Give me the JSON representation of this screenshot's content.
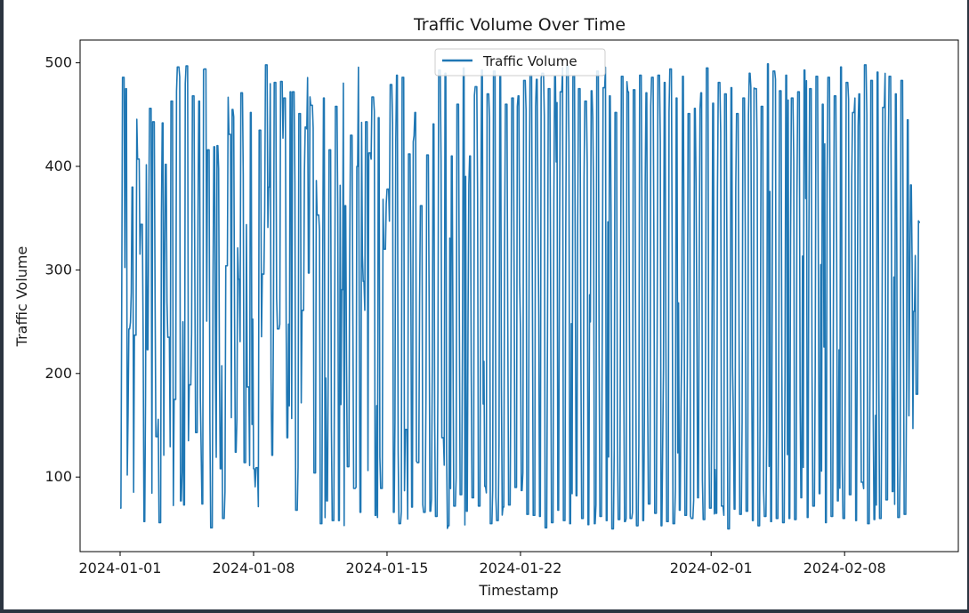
{
  "chart_data": {
    "type": "line",
    "title": "Traffic Volume Over Time",
    "xlabel": "Timestamp",
    "ylabel": "Traffic Volume",
    "x_range": [
      "2024-01-01",
      "2024-02-11 23:00"
    ],
    "x_ticks": [
      "2024-01-01",
      "2024-01-08",
      "2024-01-15",
      "2024-01-22",
      "2024-02-01",
      "2024-02-08"
    ],
    "ylim": [
      28,
      522
    ],
    "y_ticks": [
      100,
      200,
      300,
      400,
      500
    ],
    "value_range": [
      50,
      500
    ],
    "sampling": "hourly",
    "grid": false,
    "legend_position": "upper center",
    "series": [
      {
        "name": "Traffic Volume",
        "color": "#1f77b4",
        "x_start": "2024-01-01 00:00",
        "x_end": "2024-02-11 23:00",
        "values": [
          70,
          486,
          475,
          243,
          380,
          237,
          407,
          344,
          57,
          223,
          456,
          443,
          139,
          56,
          442,
          402,
          235,
          463,
          175,
          496,
          77,
          73,
          497,
          189,
          468,
          143,
          463,
          74,
          494,
          416,
          51,
          419,
          420,
          108,
          60,
          304,
          431,
          455,
          124,
          291,
          471,
          114,
          187,
          452,
          108,
          109,
          435,
          296,
          498,
          380,
          121,
          481,
          243,
          482,
          466,
          138,
          472,
          472,
          68,
          451,
          261,
          438,
          297,
          459,
          104,
          353,
          55,
          466,
          77,
          416,
          58,
          458,
          58,
          281,
          362,
          110,
          430,
          89,
          400,
          66,
          289,
          443,
          413,
          467,
          63,
          447,
          89,
          320,
          378,
          479,
          66,
          488,
          55,
          486,
          146,
          412,
          71,
          452,
          114,
          362,
          66,
          411,
          67,
          441,
          62,
          493,
          138,
          490,
          53,
          410,
          72,
          460,
          83,
          495,
          67,
          410,
          80,
          477,
          72,
          493,
          91,
          470,
          55,
          492,
          58,
          487,
          71,
          460,
          73,
          466,
          90,
          468,
          87,
          483,
          64,
          488,
          63,
          484,
          62,
          490,
          51,
          475,
          56,
          487,
          68,
          472,
          58,
          497,
          55,
          487,
          82,
          475,
          60,
          463,
          54,
          473,
          55,
          492,
          62,
          476,
          58,
          468,
          50,
          452,
          59,
          487,
          57,
          472,
          60,
          474,
          53,
          488,
          58,
          471,
          74,
          486,
          65,
          488,
          53,
          481,
          57,
          494,
          55,
          466,
          68,
          487,
          63,
          451,
          60,
          456,
          80,
          471,
          59,
          495,
          70,
          461,
          65,
          481,
          72,
          470,
          50,
          476,
          69,
          451,
          64,
          466,
          67,
          490,
          58,
          475,
          53,
          458,
          62,
          499,
          57,
          492,
          60,
          473,
          56,
          488,
          60,
          466,
          59,
          472,
          80,
          493,
          61,
          475,
          72,
          487,
          84,
          460,
          56,
          486,
          62,
          468,
          77,
          496,
          60,
          481,
          83,
          452,
          58,
          470,
          95,
          498,
          55,
          483,
          59,
          491,
          60,
          457,
          78,
          487,
          86,
          470,
          61,
          483,
          64,
          445,
          382,
          260,
          180,
          346
        ]
      }
    ]
  }
}
